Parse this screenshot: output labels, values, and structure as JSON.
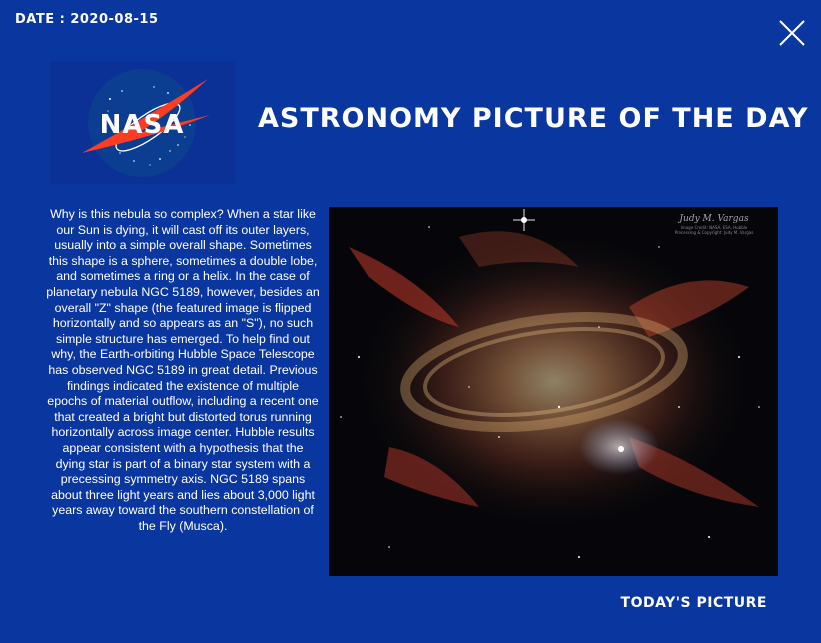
{
  "header": {
    "date_text": "DATE : 2020-08-15"
  },
  "logo": {
    "wordmark": "NASA",
    "icon": "nasa-meatball-logo"
  },
  "title": "ASTRONOMY PICTURE OF THE DAY",
  "apod": {
    "description": "Why is this nebula so complex? When a star like our Sun is dying, it will cast off its outer layers, usually into a simple overall shape. Sometimes this shape is a sphere, sometimes a double lobe, and sometimes a ring or a helix.  In the case of planetary nebula NGC 5189, however, besides an overall \"Z\" shape (the featured image is flipped horizontally and so appears as an \"S\"), no such simple structure has emerged.  To help find out why, the Earth-orbiting Hubble Space Telescope has observed NGC 5189 in great detail. Previous findings indicated the existence of multiple epochs of material outflow, including a recent one that created a bright but distorted torus running horizontally across image center.  Hubble results appear consistent with a hypothesis that the dying star is part of a binary star system with a precessing symmetry axis.  NGC 5189 spans about three light years and lies about 3,000 light years away toward the southern constellation of the Fly (Musca).",
    "image_subject": "planetary-nebula-ngc-5189",
    "image_credit": "Image Credit: NASA, ESA, Hubble; Processing & Copyright: Judy M. Vargas"
  },
  "actions": {
    "todays_picture_label": "TODAY'S PICTURE",
    "close_icon": "close-icon"
  }
}
